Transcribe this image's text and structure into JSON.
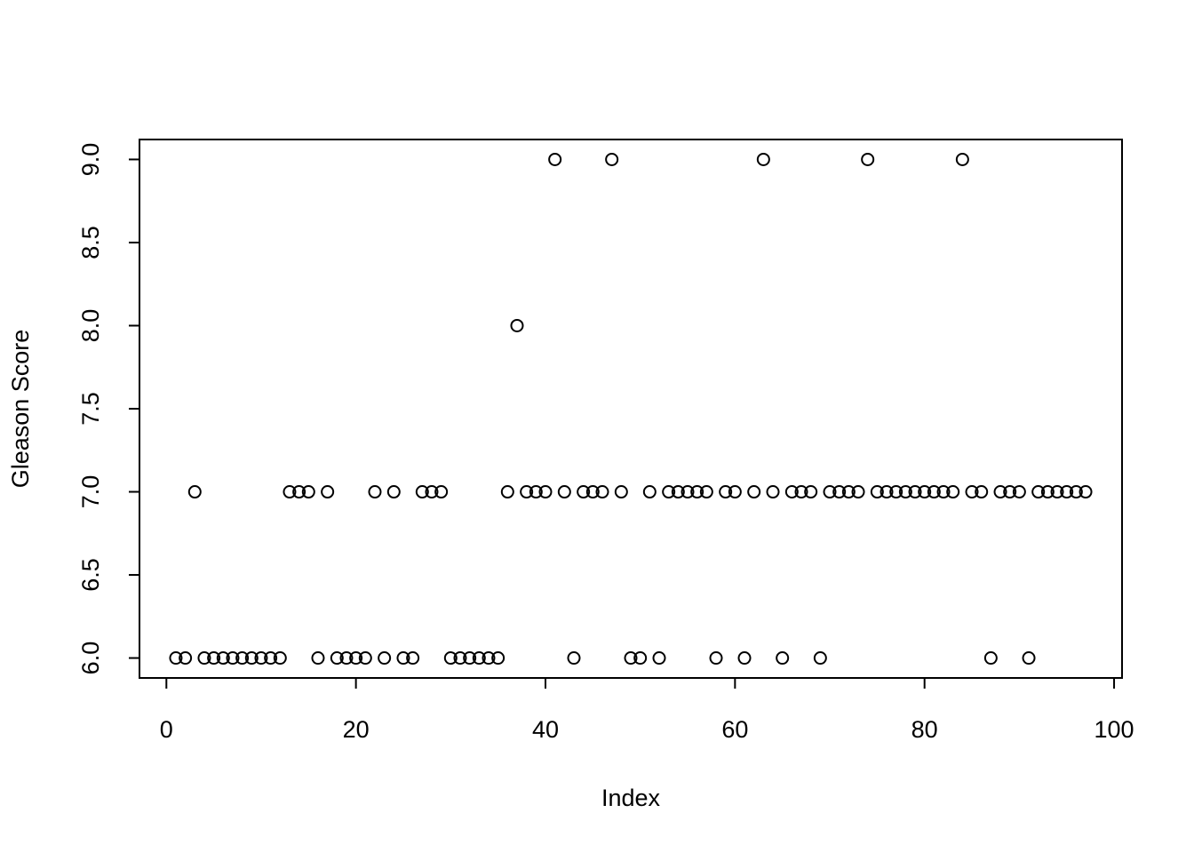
{
  "chart_data": {
    "type": "scatter",
    "xlabel": "Index",
    "ylabel": "Gleason Score",
    "x": [
      1,
      2,
      3,
      4,
      5,
      6,
      7,
      8,
      9,
      10,
      11,
      12,
      13,
      14,
      15,
      16,
      17,
      18,
      19,
      20,
      21,
      22,
      23,
      24,
      25,
      26,
      27,
      28,
      29,
      30,
      31,
      32,
      33,
      34,
      35,
      36,
      37,
      38,
      39,
      40,
      41,
      42,
      43,
      44,
      45,
      46,
      47,
      48,
      49,
      50,
      51,
      52,
      53,
      54,
      55,
      56,
      57,
      58,
      59,
      60,
      61,
      62,
      63,
      64,
      65,
      66,
      67,
      68,
      69,
      70,
      71,
      72,
      73,
      74,
      75,
      76,
      77,
      78,
      79,
      80,
      81,
      82,
      83,
      84,
      85,
      86,
      87,
      88,
      89,
      90,
      91,
      92,
      93,
      94,
      95,
      96,
      97
    ],
    "values": [
      6,
      6,
      7,
      6,
      6,
      6,
      6,
      6,
      6,
      6,
      6,
      6,
      7,
      7,
      7,
      6,
      7,
      6,
      6,
      6,
      6,
      7,
      6,
      7,
      6,
      6,
      7,
      7,
      7,
      6,
      6,
      6,
      6,
      6,
      6,
      7,
      8,
      7,
      7,
      7,
      9,
      7,
      6,
      7,
      7,
      7,
      9,
      7,
      6,
      6,
      7,
      6,
      7,
      7,
      7,
      7,
      7,
      6,
      7,
      7,
      6,
      7,
      9,
      7,
      6,
      7,
      7,
      7,
      6,
      7,
      7,
      7,
      7,
      9,
      7,
      7,
      7,
      7,
      7,
      7,
      7,
      7,
      7,
      9,
      7,
      7,
      6,
      7,
      7,
      7,
      6,
      7,
      7,
      7,
      7,
      7,
      7
    ],
    "color": "#000000",
    "xlim": [
      -2.84,
      100.84
    ],
    "ylim": [
      5.88,
      9.12
    ],
    "xticks": [
      0,
      20,
      40,
      60,
      80,
      100
    ],
    "yticks": [
      {
        "value": 6,
        "label": "6.0"
      },
      {
        "value": 6.5,
        "label": "6.5"
      },
      {
        "value": 7,
        "label": "7.0"
      },
      {
        "value": 7.5,
        "label": "7.5"
      },
      {
        "value": 8,
        "label": "8.0"
      },
      {
        "value": 8.5,
        "label": "8.5"
      },
      {
        "value": 9,
        "label": "9.0"
      }
    ]
  }
}
